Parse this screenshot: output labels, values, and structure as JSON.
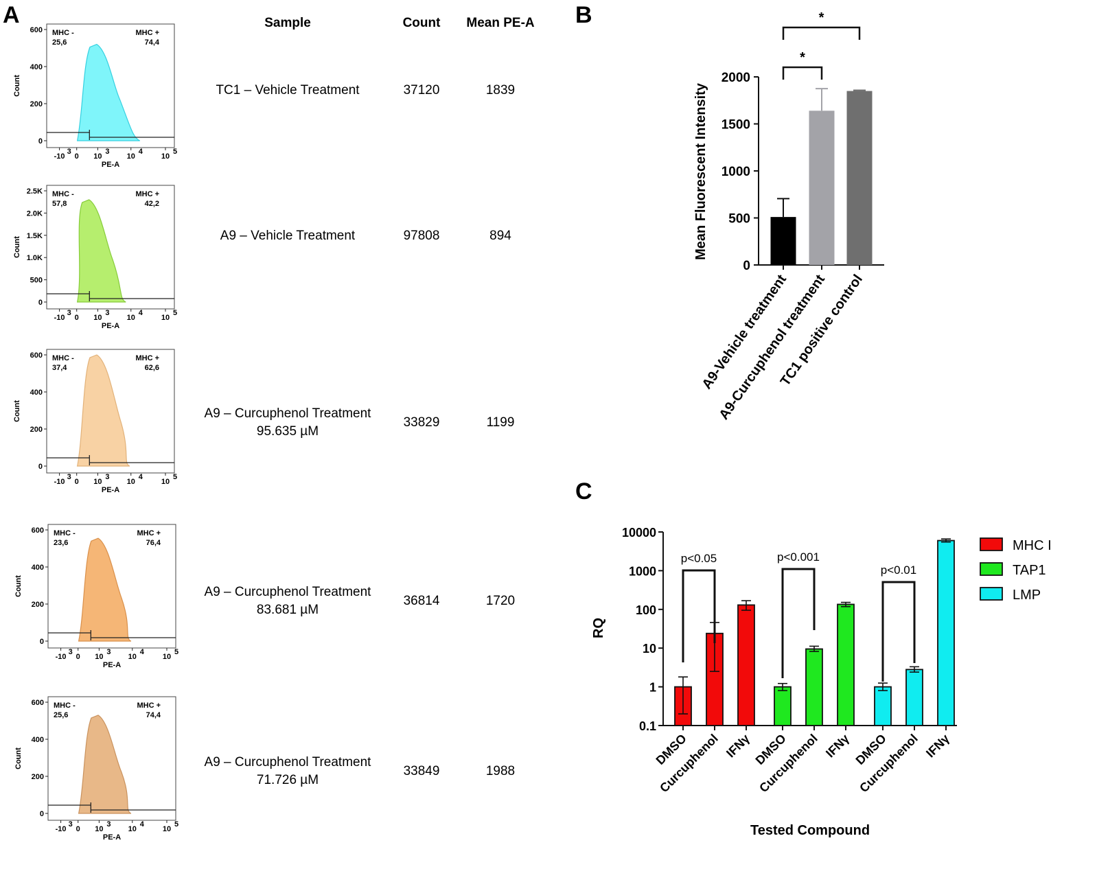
{
  "panel_labels": {
    "a": "A",
    "b": "B",
    "c": "C"
  },
  "table": {
    "headers": {
      "sample": "Sample",
      "count": "Count",
      "mean": "Mean PE-A"
    },
    "rows": [
      {
        "sample": [
          "TC1 – Vehicle Treatment"
        ],
        "count": "37120",
        "mean": "1839"
      },
      {
        "sample": [
          "A9 – Vehicle Treatment"
        ],
        "count": "97808",
        "mean": "894"
      },
      {
        "sample": [
          "A9 – Curcuphenol Treatment",
          "95.635 µM"
        ],
        "count": "33829",
        "mean": "1199"
      },
      {
        "sample": [
          "A9 – Curcuphenol Treatment",
          "83.681 µM"
        ],
        "count": "36814",
        "mean": "1720"
      },
      {
        "sample": [
          "A9 – Curcuphenol Treatment",
          "71.726 µM"
        ],
        "count": "33849",
        "mean": "1988"
      }
    ]
  },
  "chart_data": [
    {
      "type": "histogram",
      "panel": "A",
      "xlabel": "PE-A",
      "ylabel": "Count",
      "x_ticks": [
        "-10",
        "0",
        "10",
        "10",
        "10"
      ],
      "x_tick_exponents": [
        "3",
        "",
        "3",
        "4",
        "5"
      ],
      "gate_labels": {
        "neg": "MHC -",
        "pos": "MHC +"
      },
      "histograms": [
        {
          "y_ticks": [
            "0",
            "200",
            "400",
            "600"
          ],
          "y_max": 600,
          "peak": 520,
          "neg_pct": "25,6",
          "pos_pct": "74,4",
          "color": "#7ff5fa",
          "stroke": "#35d0e0"
        },
        {
          "y_ticks": [
            "0",
            "500",
            "1.0K",
            "1.5K",
            "2.0K",
            "2.5K"
          ],
          "y_max": 2500,
          "peak": 2300,
          "neg_pct": "57,8",
          "pos_pct": "42,2",
          "color": "#b6ee6e",
          "stroke": "#86cc3a"
        },
        {
          "y_ticks": [
            "0",
            "200",
            "400",
            "600"
          ],
          "y_max": 600,
          "peak": 600,
          "neg_pct": "37,4",
          "pos_pct": "62,6",
          "color": "#f8d2a4",
          "stroke": "#e2b27a"
        },
        {
          "y_ticks": [
            "0",
            "200",
            "400",
            "600"
          ],
          "y_max": 600,
          "peak": 555,
          "neg_pct": "23,6",
          "pos_pct": "76,4",
          "color": "#f5b676",
          "stroke": "#d9904b"
        },
        {
          "y_ticks": [
            "0",
            "200",
            "400",
            "600"
          ],
          "y_max": 600,
          "peak": 530,
          "neg_pct": "25,6",
          "pos_pct": "74,4",
          "color": "#e8b888",
          "stroke": "#c9925e"
        }
      ]
    },
    {
      "type": "bar",
      "panel": "B",
      "categories": [
        "A9-Vehicle treatment",
        "A9-Curcuphenol treatment",
        "TC1 positive control"
      ],
      "values": [
        510,
        1640,
        1850
      ],
      "errors": [
        195,
        235,
        8
      ],
      "colors": [
        "#000000",
        "#a3a3a8",
        "#6f6f6f"
      ],
      "ylabel": "Mean Fluorescent Intensity",
      "ylim": [
        0,
        2000
      ],
      "y_ticks": [
        0,
        500,
        1000,
        1500,
        2000
      ],
      "significance": [
        {
          "from": 0,
          "to": 1,
          "label": "*"
        },
        {
          "from": 0,
          "to": 2,
          "label": "*"
        }
      ]
    },
    {
      "type": "bar",
      "panel": "C",
      "scale": "log",
      "ylabel": "RQ",
      "xlabel": "Tested Compound",
      "ylim": [
        0.1,
        10000
      ],
      "y_ticks": [
        "0.1",
        "1",
        "10",
        "100",
        "1000",
        "10000"
      ],
      "categories": [
        "DMSO",
        "Curcuphenol",
        "IFNγ"
      ],
      "series": [
        {
          "name": "MHC I",
          "color": "#f20a0a",
          "values": [
            1,
            24,
            130
          ],
          "err_low": [
            0.2,
            2.5,
            95
          ],
          "err_high": [
            1.8,
            46,
            168
          ]
        },
        {
          "name": "TAP1",
          "color": "#1fe81f",
          "values": [
            1,
            9.5,
            135
          ],
          "err_low": [
            0.8,
            8.2,
            118
          ],
          "err_high": [
            1.22,
            11.2,
            152
          ]
        },
        {
          "name": "LMP",
          "color": "#10ecf0",
          "values": [
            1,
            2.8,
            6000
          ],
          "err_low": [
            0.8,
            2.4,
            5500
          ],
          "err_high": [
            1.25,
            3.3,
            6600
          ]
        }
      ],
      "annotations": [
        "p<0.05",
        "p<0.001",
        "p<0.01"
      ]
    }
  ]
}
